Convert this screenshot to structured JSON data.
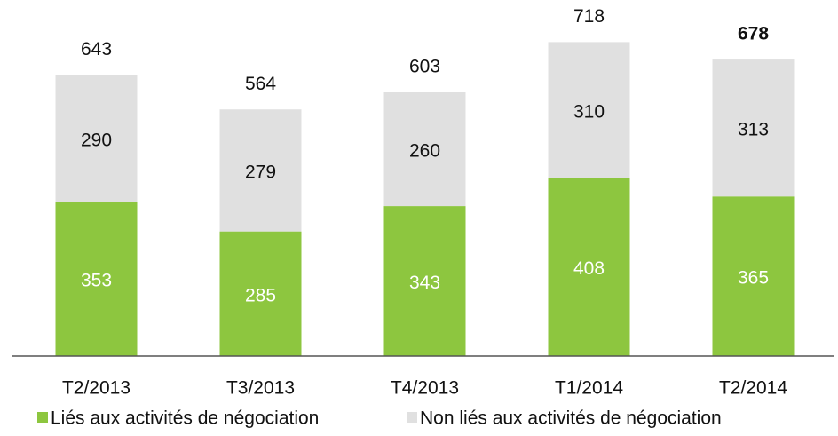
{
  "chart_data": {
    "type": "stacked_bar",
    "categories": [
      "T2/2013",
      "T3/2013",
      "T4/2013",
      "T1/2014",
      "T2/2014"
    ],
    "series": [
      {
        "name": "Liés aux activités de négociation",
        "color": "#8dc63f",
        "values": [
          353,
          285,
          343,
          408,
          365
        ]
      },
      {
        "name": "Non liés aux activités de négociation",
        "color": "#e0e0e0",
        "values": [
          290,
          279,
          260,
          310,
          313
        ]
      }
    ],
    "totals": [
      643,
      564,
      603,
      718,
      678
    ],
    "ylim": [
      0,
      800
    ],
    "legend": "bottom"
  }
}
